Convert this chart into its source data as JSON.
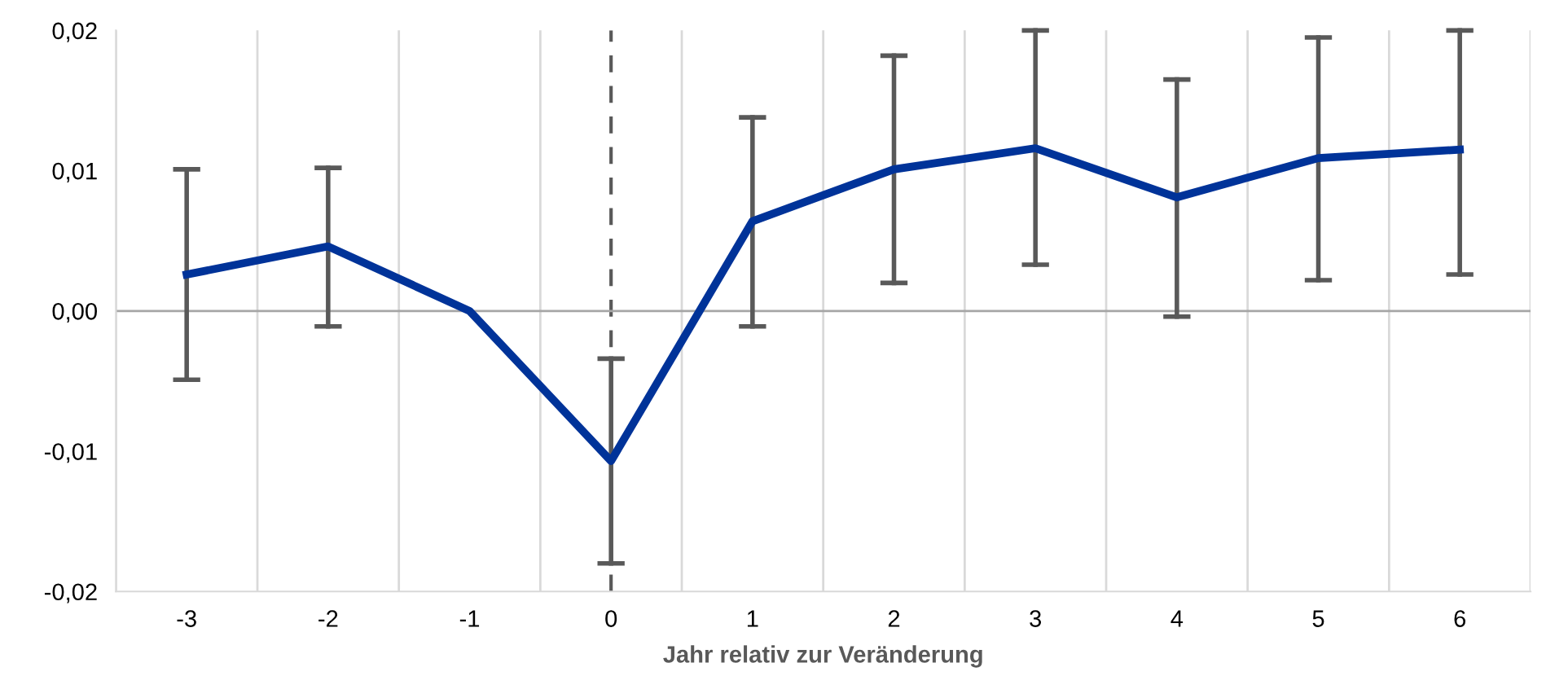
{
  "chart_data": {
    "type": "line",
    "xlabel": "Jahr relativ zur Veränderung",
    "categories": [
      "-3",
      "-2",
      "-1",
      "0",
      "1",
      "2",
      "3",
      "4",
      "5",
      "6"
    ],
    "series": [
      {
        "color": "#003399",
        "values": [
          0.0026,
          0.0046,
          0.0,
          -0.0107,
          0.0064,
          0.0101,
          0.0116,
          0.0081,
          0.0109,
          0.0115
        ],
        "errors": [
          [
            -0.0049,
            0.0101
          ],
          [
            -0.0011,
            0.0102
          ],
          null,
          [
            -0.018,
            -0.0034
          ],
          [
            -0.0011,
            0.0138
          ],
          [
            0.002,
            0.0182
          ],
          [
            0.0033,
            0.02
          ],
          [
            -0.0004,
            0.0165
          ],
          [
            0.0022,
            0.0195
          ],
          [
            0.0026,
            0.02
          ]
        ]
      }
    ],
    "ylim": [
      -0.02,
      0.02
    ],
    "yticks": [
      {
        "value": -0.02,
        "label": "-0,02"
      },
      {
        "value": -0.01,
        "label": "-0,01"
      },
      {
        "value": 0,
        "label": "0,00"
      },
      {
        "value": 0.01,
        "label": "0,01"
      },
      {
        "value": 0.02,
        "label": "0,02"
      }
    ],
    "ref_lines": [
      {
        "axis": "x",
        "value": "0",
        "color": "#595959",
        "line_style": "dashed"
      },
      {
        "axis": "y",
        "value": 0,
        "color": "#a6a6a6",
        "line_style": "solid"
      }
    ],
    "grid": "x",
    "marker": "none",
    "line_style": "solid",
    "legend": false
  }
}
